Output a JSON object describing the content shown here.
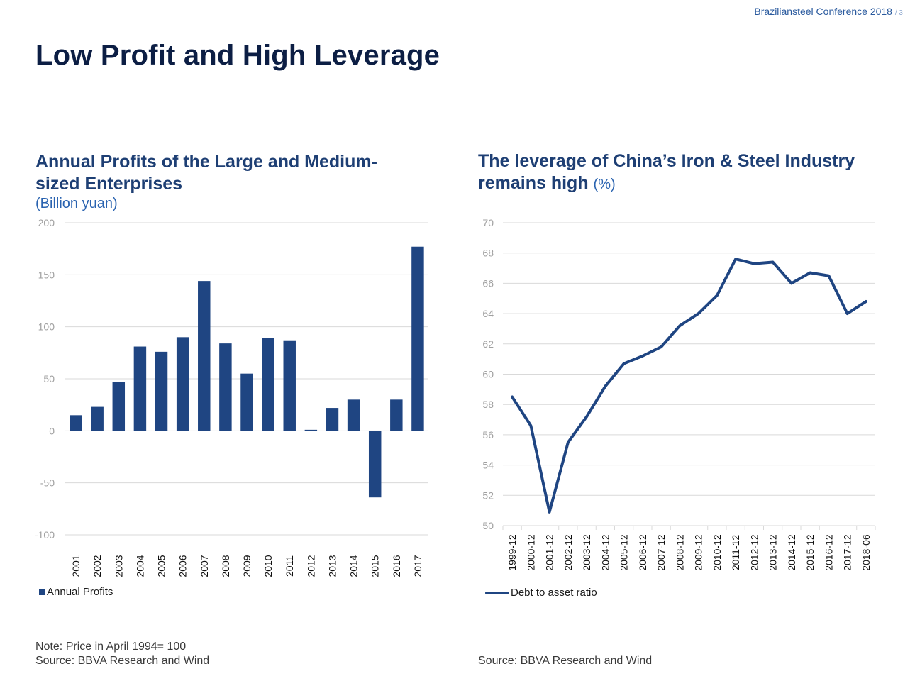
{
  "header": {
    "conference": "Braziliansteel Conference 2018",
    "page": "/ 3"
  },
  "slide_title": "Low Profit and High Leverage",
  "left": {
    "title": "Annual Profits of the Large and Medium-sized Enterprises",
    "subtitle": "(Billion yuan)",
    "legend": "Annual Profits",
    "note": "Note: Price in April 1994= 100",
    "source": "Source: BBVA Research and Wind"
  },
  "right": {
    "title": "The leverage of  China’s Iron & Steel Industry remains high",
    "unit": "(%)",
    "legend": "Debt to asset ratio",
    "source": "Source: BBVA Research and Wind"
  },
  "colors": {
    "series": "#1f4582",
    "title": "#1e3f74",
    "subtitle": "#2a63b0",
    "grid": "#d9d9d9",
    "tick": "#a0a0a0"
  },
  "chart_data": [
    {
      "type": "bar",
      "title": "Annual Profits of the Large and Medium-sized Enterprises",
      "subtitle": "(Billion yuan)",
      "categories": [
        "2001",
        "2002",
        "2003",
        "2004",
        "2005",
        "2006",
        "2007",
        "2008",
        "2009",
        "2010",
        "2011",
        "2012",
        "2013",
        "2014",
        "2015",
        "2016",
        "2017"
      ],
      "series": [
        {
          "name": "Annual Profits",
          "values": [
            15,
            23,
            47,
            81,
            76,
            90,
            144,
            84,
            55,
            89,
            87,
            1,
            22,
            30,
            -64,
            30,
            177
          ]
        }
      ],
      "ylim": [
        -100,
        200
      ],
      "yticks": [
        200,
        150,
        100,
        50,
        0,
        -50,
        -100
      ],
      "grid": true,
      "legend_position": "bottom-left"
    },
    {
      "type": "line",
      "title": "The leverage of  China’s Iron & Steel Industry remains high",
      "unit": "(%)",
      "categories": [
        "1999-12",
        "2000-12",
        "2001-12",
        "2002-12",
        "2003-12",
        "2004-12",
        "2005-12",
        "2006-12",
        "2007-12",
        "2008-12",
        "2009-12",
        "2010-12",
        "2011-12",
        "2012-12",
        "2013-12",
        "2014-12",
        "2015-12",
        "2016-12",
        "2017-12",
        "2018-06"
      ],
      "series": [
        {
          "name": "Debt to asset ratio",
          "values": [
            58.5,
            56.6,
            50.9,
            55.5,
            57.2,
            59.2,
            60.7,
            61.2,
            61.8,
            63.2,
            64.0,
            65.2,
            67.6,
            67.3,
            67.4,
            66.0,
            66.7,
            66.5,
            64.0,
            64.8
          ]
        }
      ],
      "ylim": [
        50,
        70
      ],
      "yticks": [
        70,
        68,
        66,
        64,
        62,
        60,
        58,
        56,
        54,
        52,
        50
      ],
      "grid": true,
      "legend_position": "bottom-left"
    }
  ]
}
